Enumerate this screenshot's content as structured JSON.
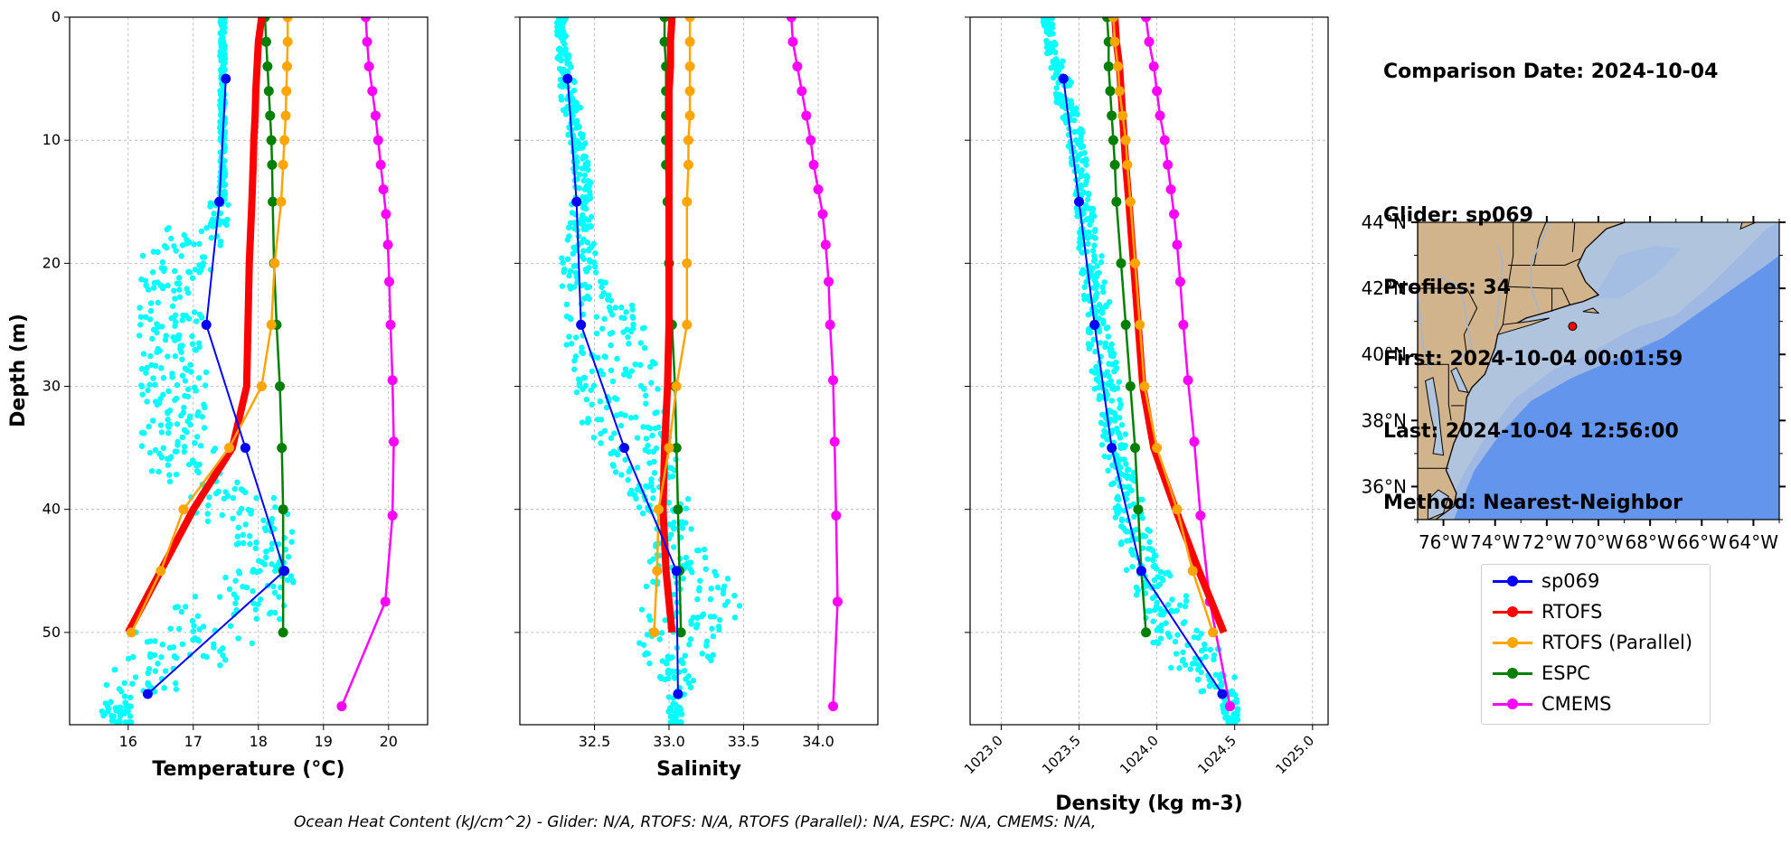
{
  "info": {
    "date_line": "Comparison Date: 2024-10-04",
    "glider_line": "Glider: sp069",
    "profiles_line": "Profiles: 34",
    "first_line": "First: 2024-10-04 00:01:59",
    "last_line": "Last: 2024-10-04 12:56:00",
    "method_line": "Method: Nearest-Neighbor"
  },
  "footer": "Ocean Heat Content (kJ/cm^2) - Glider: N/A,  RTOFS: N/A,  RTOFS (Parallel): N/A,  ESPC: N/A,  CMEMS: N/A,",
  "legend": [
    {
      "label": "sp069",
      "color": "#0000ff"
    },
    {
      "label": "RTOFS",
      "color": "#ff0000"
    },
    {
      "label": "RTOFS (Parallel)",
      "color": "#ffa500"
    },
    {
      "label": "ESPC",
      "color": "#008000"
    },
    {
      "label": "CMEMS",
      "color": "#ff00ff"
    }
  ],
  "colors": {
    "scatter": "#00ffff",
    "land": "#d2b48c",
    "shelf": "#b0c4de",
    "slope": "#9fb9e3",
    "deep": "#6495ed",
    "marker": "#ff0000"
  },
  "map": {
    "lat_labels": [
      "36°N",
      "38°N",
      "40°N",
      "42°N",
      "44°N"
    ],
    "lon_labels": [
      "76°W",
      "74°W",
      "72°W",
      "70°W",
      "68°W",
      "66°W",
      "64°W"
    ],
    "glider_position": {
      "lon": -71.0,
      "lat": 40.85
    }
  },
  "chart_data": [
    {
      "type": "line",
      "xlabel": "Temperature (°C)",
      "ylabel": "Depth (m)",
      "xlim": [
        15.1,
        20.6
      ],
      "ylim": [
        57.5,
        0
      ],
      "xticks": [
        16,
        17,
        18,
        19,
        20
      ],
      "yticks": [
        0,
        10,
        20,
        30,
        40,
        50
      ],
      "grid": true,
      "series": [
        {
          "name": "sp069",
          "depth": [
            5,
            15,
            25,
            35,
            45,
            55
          ],
          "values": [
            17.5,
            17.4,
            17.2,
            17.8,
            18.4,
            16.3
          ]
        },
        {
          "name": "RTOFS",
          "depth": [
            0,
            2,
            4,
            6,
            8,
            10,
            12,
            15,
            20,
            25,
            30,
            35,
            40,
            45,
            50
          ],
          "values": [
            18.05,
            18.0,
            17.98,
            17.96,
            17.95,
            17.93,
            17.92,
            17.9,
            17.86,
            17.84,
            17.82,
            17.6,
            17.0,
            16.5,
            16.0
          ]
        },
        {
          "name": "RTOFS (Parallel)",
          "depth": [
            0,
            2,
            4,
            6,
            8,
            10,
            12,
            15,
            20,
            25,
            30,
            35,
            40,
            45,
            50
          ],
          "values": [
            18.45,
            18.45,
            18.44,
            18.43,
            18.42,
            18.4,
            18.38,
            18.35,
            18.25,
            18.2,
            18.05,
            17.55,
            16.85,
            16.5,
            16.05
          ]
        },
        {
          "name": "ESPC",
          "depth": [
            0,
            2,
            4,
            6,
            8,
            10,
            12,
            15,
            20,
            25,
            30,
            35,
            40,
            45,
            50
          ],
          "values": [
            18.1,
            18.12,
            18.14,
            18.16,
            18.18,
            18.2,
            18.21,
            18.22,
            18.24,
            18.28,
            18.33,
            18.36,
            18.38,
            18.38,
            18.38
          ]
        },
        {
          "name": "CMEMS",
          "depth": [
            0,
            2,
            4,
            6,
            8,
            10,
            12,
            14,
            16,
            18.5,
            21.5,
            25,
            29.5,
            34.5,
            40.5,
            47.5,
            56
          ],
          "values": [
            19.65,
            19.67,
            19.7,
            19.75,
            19.8,
            19.84,
            19.88,
            19.92,
            19.96,
            19.99,
            20.01,
            20.03,
            20.06,
            20.08,
            20.06,
            19.95,
            19.28
          ]
        }
      ],
      "scatter": {
        "name": "glider profiles",
        "depth": [
          0,
          2,
          4,
          6,
          8,
          10,
          12,
          14,
          16,
          18,
          20,
          22,
          24,
          26,
          28,
          30,
          32,
          34,
          36,
          38,
          40,
          42,
          44,
          46,
          48,
          50,
          52,
          54,
          56,
          57
        ],
        "values": [
          17.45,
          17.45,
          17.45,
          17.45,
          17.45,
          17.45,
          17.45,
          17.45,
          17.4,
          17.0,
          16.75,
          16.65,
          16.65,
          16.65,
          16.7,
          16.7,
          16.7,
          16.7,
          16.85,
          17.3,
          17.7,
          18.1,
          18.2,
          18.0,
          17.6,
          17.0,
          16.8,
          16.2,
          15.8,
          15.9
        ],
        "spread": [
          0.04,
          0.04,
          0.04,
          0.04,
          0.04,
          0.04,
          0.04,
          0.05,
          0.15,
          0.45,
          0.55,
          0.5,
          0.5,
          0.5,
          0.5,
          0.5,
          0.5,
          0.5,
          0.55,
          0.7,
          0.8,
          0.45,
          0.3,
          0.55,
          0.9,
          0.95,
          0.8,
          0.55,
          0.25,
          0.15
        ]
      }
    },
    {
      "type": "line",
      "xlabel": "Salinity",
      "xlim": [
        32.0,
        34.4
      ],
      "ylim": [
        57.5,
        0
      ],
      "xticks": [
        32.5,
        33.0,
        33.5,
        34.0
      ],
      "yticks": [
        0,
        10,
        20,
        30,
        40,
        50
      ],
      "grid": true,
      "series": [
        {
          "name": "sp069",
          "depth": [
            5,
            15,
            25,
            35,
            45,
            55
          ],
          "values": [
            32.32,
            32.38,
            32.41,
            32.7,
            33.05,
            33.06
          ]
        },
        {
          "name": "RTOFS",
          "depth": [
            0,
            2,
            4,
            6,
            8,
            10,
            12,
            15,
            20,
            25,
            30,
            35,
            40,
            45,
            50
          ],
          "values": [
            33.02,
            33.01,
            33.01,
            33.0,
            33.0,
            33.0,
            33.0,
            33.0,
            33.0,
            33.0,
            32.99,
            32.97,
            32.96,
            32.98,
            33.02
          ]
        },
        {
          "name": "RTOFS (Parallel)",
          "depth": [
            0,
            2,
            4,
            6,
            8,
            10,
            12,
            15,
            20,
            25,
            30,
            35,
            40,
            45,
            50
          ],
          "values": [
            33.14,
            33.14,
            33.14,
            33.14,
            33.14,
            33.13,
            33.13,
            33.12,
            33.12,
            33.12,
            33.05,
            33.0,
            32.93,
            32.92,
            32.9
          ]
        },
        {
          "name": "ESPC",
          "depth": [
            0,
            2,
            4,
            6,
            8,
            10,
            12,
            15,
            20,
            25,
            30,
            35,
            40,
            45,
            50
          ],
          "values": [
            32.97,
            32.97,
            32.98,
            32.98,
            32.98,
            32.98,
            32.98,
            32.99,
            33.0,
            33.02,
            33.04,
            33.05,
            33.06,
            33.07,
            33.08
          ]
        },
        {
          "name": "CMEMS",
          "depth": [
            0,
            2,
            4,
            6,
            8,
            10,
            12,
            14,
            16,
            18.5,
            21.5,
            25,
            29.5,
            34.5,
            40.5,
            47.5,
            56
          ],
          "values": [
            33.82,
            33.83,
            33.86,
            33.89,
            33.92,
            33.95,
            33.97,
            34.0,
            34.03,
            34.05,
            34.07,
            34.08,
            34.1,
            34.11,
            34.12,
            34.13,
            34.1
          ]
        }
      ],
      "scatter": {
        "name": "glider profiles",
        "depth": [
          0,
          2,
          4,
          6,
          8,
          10,
          12,
          14,
          16,
          18,
          20,
          22,
          24,
          26,
          28,
          30,
          32,
          34,
          36,
          38,
          40,
          42,
          44,
          46,
          48,
          50,
          52,
          54,
          56,
          57
        ],
        "values": [
          32.28,
          32.28,
          32.3,
          32.32,
          32.35,
          32.38,
          32.4,
          32.42,
          32.42,
          32.4,
          32.4,
          32.45,
          32.55,
          32.6,
          32.62,
          32.65,
          32.7,
          32.75,
          32.8,
          32.88,
          32.95,
          33.0,
          33.05,
          33.1,
          33.15,
          33.1,
          33.05,
          33.05,
          33.05,
          33.05
        ],
        "spread": [
          0.03,
          0.03,
          0.05,
          0.06,
          0.06,
          0.06,
          0.06,
          0.06,
          0.08,
          0.1,
          0.12,
          0.18,
          0.25,
          0.3,
          0.3,
          0.3,
          0.3,
          0.28,
          0.25,
          0.2,
          0.18,
          0.15,
          0.2,
          0.3,
          0.35,
          0.3,
          0.25,
          0.12,
          0.06,
          0.04
        ]
      }
    },
    {
      "type": "line",
      "xlabel": "Density (kg m-3)",
      "xlim": [
        1022.8,
        1025.1
      ],
      "ylim": [
        57.5,
        0
      ],
      "xticks": [
        1023.0,
        1023.5,
        1024.0,
        1024.5,
        1025.0
      ],
      "yticks": [
        0,
        10,
        20,
        30,
        40,
        50
      ],
      "grid": true,
      "series": [
        {
          "name": "sp069",
          "depth": [
            5,
            15,
            25,
            35,
            45,
            55
          ],
          "values": [
            1023.4,
            1023.5,
            1023.6,
            1023.71,
            1023.9,
            1024.42
          ]
        },
        {
          "name": "RTOFS",
          "depth": [
            0,
            2,
            4,
            6,
            8,
            10,
            12,
            15,
            20,
            25,
            30,
            35,
            40,
            45,
            50
          ],
          "values": [
            1023.73,
            1023.74,
            1023.76,
            1023.77,
            1023.78,
            1023.79,
            1023.8,
            1023.82,
            1023.85,
            1023.88,
            1023.91,
            1023.98,
            1024.12,
            1024.27,
            1024.43
          ]
        },
        {
          "name": "RTOFS (Parallel)",
          "depth": [
            0,
            2,
            4,
            6,
            8,
            10,
            12,
            15,
            20,
            25,
            30,
            35,
            40,
            45,
            50
          ],
          "values": [
            1023.72,
            1023.73,
            1023.75,
            1023.76,
            1023.78,
            1023.8,
            1023.81,
            1023.83,
            1023.86,
            1023.89,
            1023.92,
            1024.0,
            1024.13,
            1024.23,
            1024.36
          ]
        },
        {
          "name": "ESPC",
          "depth": [
            0,
            2,
            4,
            6,
            8,
            10,
            12,
            15,
            20,
            25,
            30,
            35,
            40,
            45,
            50
          ],
          "values": [
            1023.68,
            1023.69,
            1023.69,
            1023.7,
            1023.71,
            1023.72,
            1023.73,
            1023.74,
            1023.77,
            1023.8,
            1023.83,
            1023.86,
            1023.88,
            1023.9,
            1023.93
          ]
        },
        {
          "name": "CMEMS",
          "depth": [
            0,
            2,
            4,
            6,
            8,
            10,
            12,
            14,
            16,
            18.5,
            21.5,
            25,
            29.5,
            34.5,
            40.5,
            47.5,
            56
          ],
          "values": [
            1023.93,
            1023.95,
            1023.98,
            1024.0,
            1024.02,
            1024.05,
            1024.07,
            1024.09,
            1024.11,
            1024.13,
            1024.15,
            1024.17,
            1024.2,
            1024.24,
            1024.28,
            1024.34,
            1024.47
          ]
        }
      ],
      "scatter": {
        "name": "glider profiles",
        "depth": [
          0,
          2,
          4,
          6,
          8,
          10,
          12,
          14,
          16,
          18,
          20,
          22,
          24,
          26,
          28,
          30,
          32,
          34,
          36,
          38,
          40,
          42,
          44,
          46,
          48,
          50,
          52,
          54,
          56,
          57
        ],
        "values": [
          1023.3,
          1023.32,
          1023.36,
          1023.4,
          1023.44,
          1023.48,
          1023.5,
          1023.52,
          1023.54,
          1023.56,
          1023.58,
          1023.6,
          1023.62,
          1023.64,
          1023.66,
          1023.68,
          1023.7,
          1023.72,
          1023.74,
          1023.78,
          1023.82,
          1023.86,
          1023.9,
          1023.98,
          1024.05,
          1024.15,
          1024.25,
          1024.38,
          1024.46,
          1024.48
        ],
        "spread": [
          0.03,
          0.03,
          0.04,
          0.05,
          0.05,
          0.05,
          0.05,
          0.05,
          0.06,
          0.06,
          0.07,
          0.07,
          0.08,
          0.08,
          0.08,
          0.08,
          0.08,
          0.08,
          0.08,
          0.08,
          0.09,
          0.1,
          0.1,
          0.12,
          0.15,
          0.18,
          0.16,
          0.12,
          0.06,
          0.04
        ]
      }
    }
  ]
}
